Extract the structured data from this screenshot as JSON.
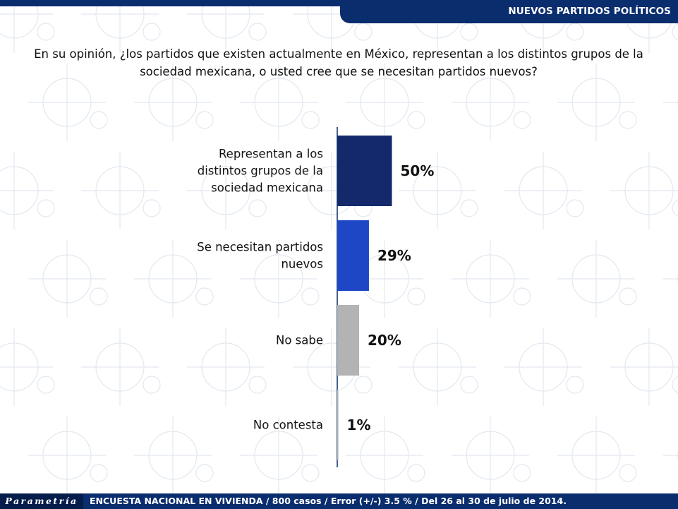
{
  "header": {
    "section_title": "NUEVOS PARTIDOS POLÍTICOS"
  },
  "question": "En su opinión, ¿los partidos que existen actualmente en México, representan a los distintos grupos de la sociedad mexicana, o usted cree que se necesitan partidos nuevos?",
  "chart_data": {
    "type": "bar",
    "orientation": "horizontal",
    "categories": [
      [
        "Representan a los",
        "distintos grupos de la",
        "sociedad mexicana"
      ],
      [
        "Se necesitan partidos",
        "nuevos"
      ],
      [
        "No sabe"
      ],
      [
        "No contesta"
      ]
    ],
    "values": [
      50,
      29,
      20,
      1
    ],
    "value_labels": [
      "50%",
      "29%",
      "20%",
      "1%"
    ],
    "colors": [
      "#13296b",
      "#1d47c4",
      "#b3b3b3",
      "#b3b3b3"
    ],
    "xlim": [
      0,
      100
    ],
    "title": "",
    "xlabel": "",
    "ylabel": ""
  },
  "footer": {
    "logo_text": "Parametría",
    "note": "ENCUESTA NACIONAL EN VIVIENDA / 800 casos / Error (+/-) 3.5 % / Del 26 al 30 de julio de 2014."
  }
}
